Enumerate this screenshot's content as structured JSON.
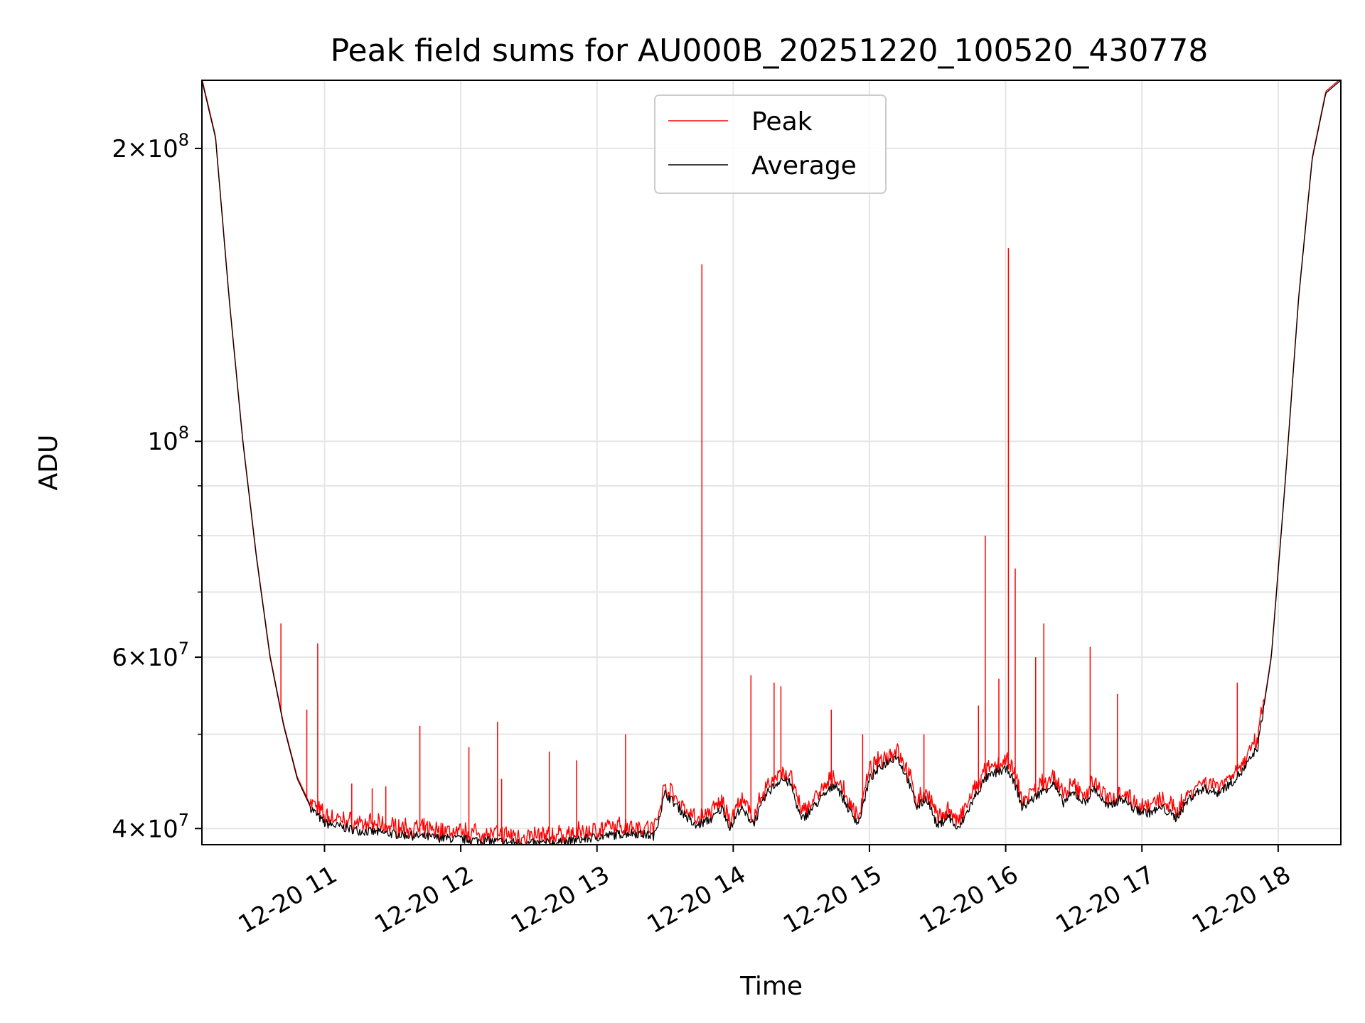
{
  "chart_data": {
    "type": "line",
    "title": "Peak field sums for AU000B_20251220_100520_430778",
    "xlabel": "Time",
    "ylabel": "ADU",
    "yscale": "log",
    "ylim": [
      38500000,
      235000000
    ],
    "xlim": [
      10.1,
      18.46
    ],
    "grid": true,
    "legend_position": "top-center",
    "x_ticks": [
      {
        "value": 11,
        "label": "12-20 11"
      },
      {
        "value": 12,
        "label": "12-20 12"
      },
      {
        "value": 13,
        "label": "12-20 13"
      },
      {
        "value": 14,
        "label": "12-20 14"
      },
      {
        "value": 15,
        "label": "12-20 15"
      },
      {
        "value": 16,
        "label": "12-20 16"
      },
      {
        "value": 17,
        "label": "12-20 17"
      },
      {
        "value": 18,
        "label": "12-20 18"
      }
    ],
    "y_major_ticks": [
      {
        "value": 40000000,
        "mantissa": "4",
        "exponent": "7"
      },
      {
        "value": 60000000,
        "mantissa": "6",
        "exponent": "7"
      },
      {
        "value": 100000000,
        "mantissa": "",
        "exponent": "8"
      },
      {
        "value": 200000000,
        "mantissa": "2",
        "exponent": "8"
      }
    ],
    "y_minor_ticks": [
      50000000,
      70000000,
      80000000,
      90000000
    ],
    "series": [
      {
        "name": "Average",
        "color": "#000000",
        "x": [
          10.1,
          10.2,
          10.3,
          10.4,
          10.5,
          10.6,
          10.7,
          10.8,
          10.9,
          11.0,
          11.25,
          11.5,
          11.75,
          12.0,
          12.25,
          12.5,
          12.75,
          13.0,
          13.25,
          13.42,
          13.5,
          13.6,
          13.72,
          13.85,
          13.92,
          13.98,
          14.05,
          14.15,
          14.25,
          14.35,
          14.42,
          14.5,
          14.55,
          14.65,
          14.75,
          14.85,
          14.92,
          15.0,
          15.1,
          15.2,
          15.28,
          15.35,
          15.42,
          15.5,
          15.58,
          15.65,
          15.75,
          15.85,
          15.95,
          16.02,
          16.08,
          16.12,
          16.25,
          16.35,
          16.42,
          16.5,
          16.58,
          16.65,
          16.75,
          16.85,
          16.95,
          17.05,
          17.15,
          17.25,
          17.35,
          17.45,
          17.55,
          17.65,
          17.75,
          17.85,
          17.95,
          18.05,
          18.15,
          18.25,
          18.35,
          18.46
        ],
        "y": [
          235000000,
          205000000,
          140000000,
          100000000,
          76000000,
          60000000,
          51000000,
          45000000,
          42000000,
          40500000,
          39800000,
          39500000,
          39200000,
          39000000,
          38800000,
          38600000,
          38700000,
          39200000,
          39600000,
          39300000,
          43500000,
          42000000,
          40200000,
          41000000,
          42000000,
          40000000,
          42000000,
          40500000,
          43500000,
          45000000,
          44500000,
          40800000,
          41500000,
          43000000,
          44500000,
          41800000,
          40500000,
          45000000,
          46500000,
          47500000,
          45000000,
          42000000,
          43000000,
          40200000,
          41200000,
          39800000,
          42500000,
          45000000,
          45800000,
          46000000,
          44000000,
          42000000,
          43500000,
          44500000,
          42500000,
          43500000,
          42500000,
          44000000,
          42000000,
          43000000,
          41800000,
          41500000,
          42000000,
          41000000,
          43000000,
          44000000,
          43500000,
          44500000,
          46000000,
          48500000,
          60000000,
          90000000,
          140000000,
          195000000,
          228000000,
          235000000
        ]
      },
      {
        "name": "Peak",
        "color": "#ff0000",
        "spikes": [
          {
            "x": 10.68,
            "y": 65000000
          },
          {
            "x": 10.87,
            "y": 53000000
          },
          {
            "x": 10.95,
            "y": 62000000
          },
          {
            "x": 11.2,
            "y": 44500000
          },
          {
            "x": 11.35,
            "y": 44000000
          },
          {
            "x": 11.45,
            "y": 44200000
          },
          {
            "x": 11.7,
            "y": 51000000
          },
          {
            "x": 12.06,
            "y": 48500000
          },
          {
            "x": 12.27,
            "y": 51500000
          },
          {
            "x": 12.3,
            "y": 45000000
          },
          {
            "x": 12.65,
            "y": 48000000
          },
          {
            "x": 12.85,
            "y": 47000000
          },
          {
            "x": 13.21,
            "y": 50000000
          },
          {
            "x": 13.77,
            "y": 152000000
          },
          {
            "x": 14.13,
            "y": 57500000
          },
          {
            "x": 14.3,
            "y": 56500000
          },
          {
            "x": 14.35,
            "y": 56000000
          },
          {
            "x": 14.72,
            "y": 53000000
          },
          {
            "x": 14.95,
            "y": 50000000
          },
          {
            "x": 15.4,
            "y": 50000000
          },
          {
            "x": 15.8,
            "y": 53500000
          },
          {
            "x": 15.85,
            "y": 80000000
          },
          {
            "x": 15.95,
            "y": 57000000
          },
          {
            "x": 16.02,
            "y": 158000000
          },
          {
            "x": 16.07,
            "y": 74000000
          },
          {
            "x": 16.22,
            "y": 60000000
          },
          {
            "x": 16.28,
            "y": 65000000
          },
          {
            "x": 16.62,
            "y": 61500000
          },
          {
            "x": 16.82,
            "y": 55000000
          },
          {
            "x": 17.7,
            "y": 56500000
          }
        ]
      }
    ]
  }
}
